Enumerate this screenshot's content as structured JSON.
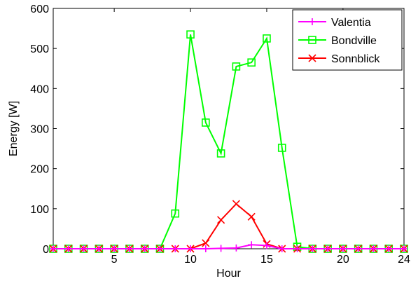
{
  "chart_data": {
    "type": "line",
    "xlabel": "Hour",
    "ylabel": "Energy [W]",
    "xlim": [
      1,
      24
    ],
    "ylim": [
      0,
      600
    ],
    "xticks": [
      5,
      10,
      15,
      20,
      24
    ],
    "yticks": [
      0,
      100,
      200,
      300,
      400,
      500,
      600
    ],
    "grid": false,
    "legend_position": "top-right",
    "x": [
      1,
      2,
      3,
      4,
      5,
      6,
      7,
      8,
      9,
      10,
      11,
      12,
      13,
      14,
      15,
      16,
      17,
      18,
      19,
      20,
      21,
      22,
      23,
      24
    ],
    "series": [
      {
        "name": "Valentia",
        "color": "#ff00ff",
        "marker": "plus",
        "values": [
          0,
          0,
          0,
          0,
          0,
          0,
          0,
          0,
          0,
          0,
          0,
          1,
          2,
          10,
          8,
          0,
          0,
          0,
          0,
          0,
          0,
          0,
          0,
          0
        ]
      },
      {
        "name": "Bondville",
        "color": "#00ff00",
        "marker": "square",
        "values": [
          0,
          0,
          0,
          0,
          0,
          0,
          0,
          0,
          88,
          535,
          315,
          238,
          455,
          465,
          525,
          252,
          5,
          0,
          0,
          0,
          0,
          0,
          0,
          0
        ]
      },
      {
        "name": "Sonnblick",
        "color": "#ff0000",
        "marker": "x",
        "values": [
          0,
          0,
          0,
          0,
          0,
          0,
          0,
          0,
          0,
          0,
          14,
          72,
          112,
          80,
          12,
          0,
          0,
          0,
          0,
          0,
          0,
          0,
          0,
          0
        ]
      }
    ]
  }
}
